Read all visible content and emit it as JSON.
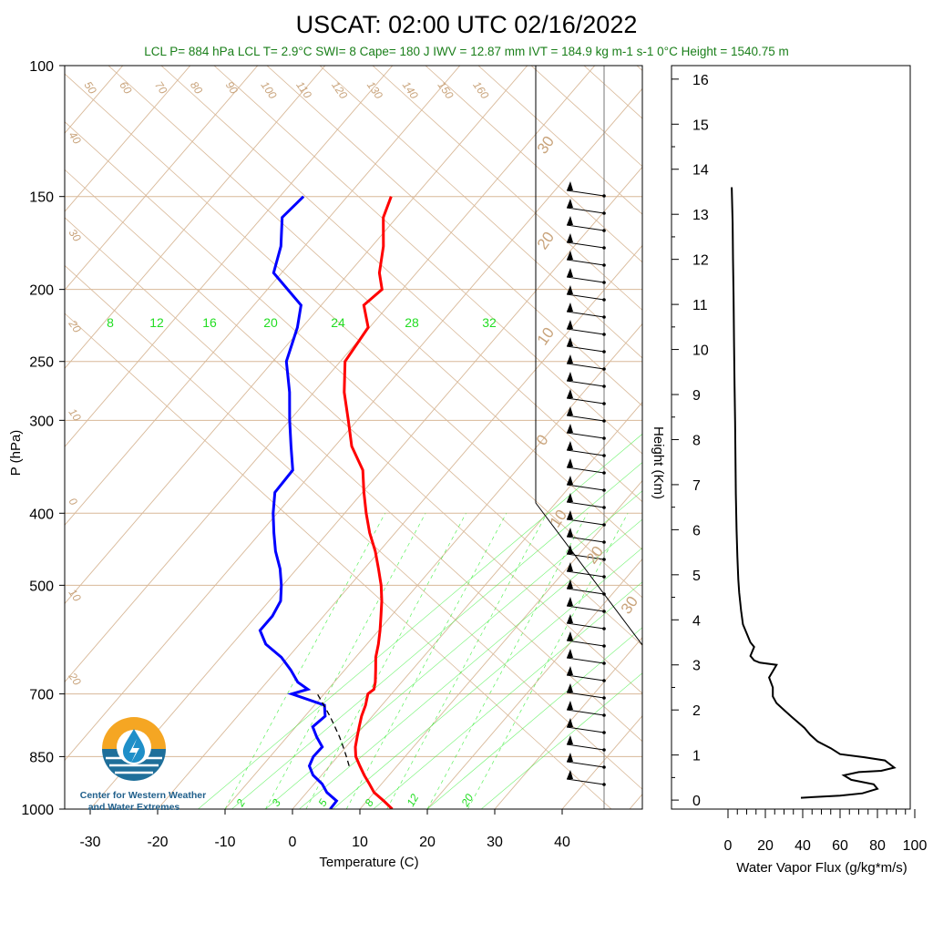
{
  "title": "USCAT: 02:00 UTC 02/16/2022",
  "subtitle": "LCL P= 884 hPa  LCL T= 2.9°C  SWI= 8  Cape= 180 J  IWV = 12.87 mm  IVT = 184.9 kg m-1 s-1  0°C Height = 1540.75 m",
  "logo": {
    "line1": "Center for Western Weather",
    "line2": "and Water Extremes"
  },
  "colors": {
    "temperature": "#ff0000",
    "dewpoint": "#0000ff",
    "isotherm": "#d8b898",
    "mixing_ratio": "#33ee33",
    "subtitle": "#1a7f1a"
  },
  "chart_data": [
    {
      "type": "line",
      "chart": "skew-t log-p sounding",
      "xlabel": "Temperature (C)",
      "ylabel": "P (hPa)",
      "x_ticks": [
        "-30",
        "-20",
        "-10",
        "0",
        "10",
        "20",
        "30",
        "40"
      ],
      "y_ticks": [
        "100",
        "150",
        "200",
        "250",
        "300",
        "400",
        "500",
        "700",
        "850",
        "1000"
      ],
      "pressure_levels": [
        1000,
        975,
        950,
        925,
        900,
        875,
        850,
        825,
        800,
        775,
        750,
        725,
        700,
        690,
        675,
        650,
        625,
        600,
        575,
        550,
        525,
        500,
        475,
        450,
        425,
        400,
        375,
        350,
        325,
        300,
        275,
        250,
        225,
        210,
        200,
        190,
        175,
        160,
        150
      ],
      "series": [
        {
          "name": "Temperature",
          "values": [
            14.8,
            12.5,
            10.0,
            8.2,
            6.3,
            4.5,
            2.7,
            1.4,
            0.4,
            -0.6,
            -1.6,
            -2.4,
            -3.5,
            -3.2,
            -3.9,
            -5.4,
            -7.0,
            -8.3,
            -9.8,
            -11.5,
            -13.3,
            -15.4,
            -17.9,
            -20.6,
            -23.8,
            -26.8,
            -29.8,
            -32.8,
            -37.5,
            -41.3,
            -45.5,
            -49.3,
            -50.2,
            -53.7,
            -53.0,
            -55.5,
            -58.3,
            -62.0,
            -63.5
          ]
        },
        {
          "name": "Dewpoint",
          "values": [
            5.6,
            5.5,
            3.0,
            1.2,
            -1.3,
            -3.0,
            -3.6,
            -3.5,
            -5.6,
            -7.5,
            -7.0,
            -8.5,
            -14.8,
            -13.0,
            -15.4,
            -18.0,
            -21.0,
            -25.0,
            -27.6,
            -27.6,
            -28.3,
            -30.2,
            -32.5,
            -35.4,
            -38.0,
            -40.6,
            -43.0,
            -43.2,
            -46.5,
            -50.0,
            -53.6,
            -58.0,
            -60.7,
            -63.0,
            -67.0,
            -71.2,
            -73.5,
            -77.0,
            -76.5
          ]
        },
        {
          "name": "Parcel",
          "values": [
            null,
            null,
            null,
            null,
            null,
            2.9,
            1.3,
            -0.4,
            -2.2,
            -4.2,
            -6.3,
            -8.6,
            -11.0,
            null,
            null,
            null,
            null,
            null,
            null,
            null,
            null,
            null,
            null,
            null,
            null,
            null,
            null,
            null,
            null,
            null,
            null,
            null,
            null,
            null,
            null,
            null,
            null,
            null,
            null
          ]
        }
      ],
      "isotherm_labels": [
        "50",
        "60",
        "70",
        "80",
        "90",
        "100",
        "110",
        "120",
        "130",
        "140",
        "150",
        "160",
        "40",
        "30",
        "20",
        "10",
        "0",
        "10",
        "20"
      ],
      "temperature_labels_right": [
        "30",
        "20",
        "10",
        "0",
        "10",
        "20",
        "30"
      ],
      "mixing_ratio_labels_top": [
        "8",
        "12",
        "16",
        "20",
        "24",
        "28",
        "32"
      ],
      "mixing_ratio_labels_bottom": [
        "2",
        "3",
        "5",
        "8",
        "12",
        "20"
      ]
    },
    {
      "type": "line",
      "chart": "water vapor flux profile",
      "xlabel": "Water Vapor Flux (g/kg*m/s)",
      "ylabel": "Height (Km)",
      "x_ticks": [
        "0",
        "20",
        "40",
        "60",
        "80",
        "100"
      ],
      "y_ticks": [
        "0",
        "1",
        "2",
        "3",
        "4",
        "5",
        "6",
        "7",
        "8",
        "9",
        "10",
        "11",
        "12",
        "13",
        "14",
        "15",
        "16"
      ],
      "xlim": [
        0,
        100
      ],
      "ylim": [
        -0.2,
        16.3
      ],
      "x": [
        39,
        60,
        72,
        80,
        78,
        66,
        62,
        70,
        82,
        89,
        84,
        73,
        60,
        55,
        48,
        44,
        41,
        34,
        30,
        26,
        24,
        24,
        22,
        26,
        17,
        14,
        12,
        14,
        12,
        10,
        8,
        7,
        6,
        5.5,
        5,
        4.6,
        4.2,
        4.0,
        3.8,
        3.5,
        3.2,
        3.0,
        2.7,
        2.5,
        2.0
      ],
      "y": [
        0.05,
        0.1,
        0.15,
        0.25,
        0.35,
        0.45,
        0.55,
        0.62,
        0.65,
        0.72,
        0.88,
        0.95,
        1.02,
        1.15,
        1.3,
        1.45,
        1.6,
        1.85,
        2.0,
        2.15,
        2.3,
        2.5,
        2.72,
        3.0,
        3.05,
        3.1,
        3.2,
        3.4,
        3.5,
        3.7,
        3.9,
        4.2,
        4.6,
        4.9,
        5.4,
        6.0,
        6.8,
        7.6,
        8.4,
        9.2,
        10.2,
        11.2,
        12.0,
        12.8,
        13.6
      ]
    }
  ]
}
